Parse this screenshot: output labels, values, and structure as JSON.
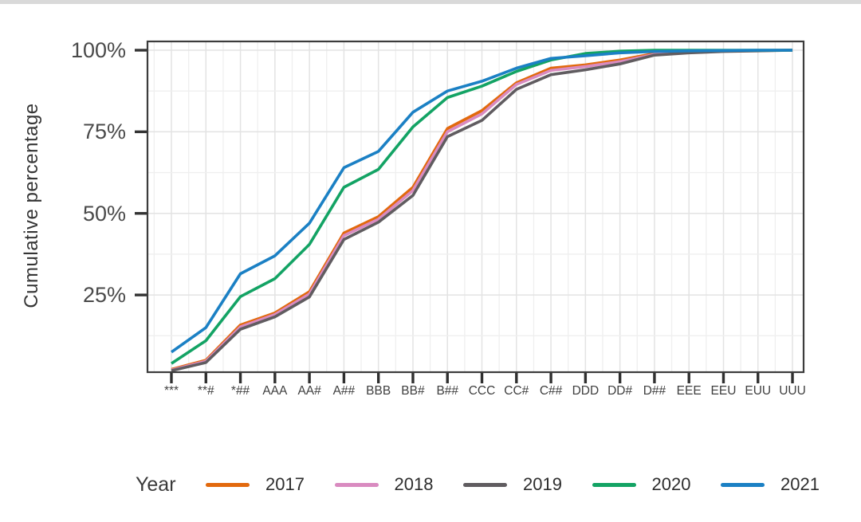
{
  "figure": {
    "y_axis_title": "Cumulative percentage",
    "legend_title": "Year"
  },
  "chart_data": {
    "type": "line",
    "title": "",
    "xlabel": "",
    "ylabel": "Cumulative percentage",
    "ylim": [
      0,
      100
    ],
    "grid": true,
    "legend_position": "bottom",
    "legend_title": "Year",
    "y_ticks": [
      {
        "label": "100%",
        "value": 100
      },
      {
        "label": "75%",
        "value": 75
      },
      {
        "label": "50%",
        "value": 50
      },
      {
        "label": "25%",
        "value": 25
      }
    ],
    "y_minor_gridlines": [
      12.5,
      37.5,
      62.5,
      87.5
    ],
    "categories": [
      "***",
      "**#",
      "*##",
      "AAA",
      "AA#",
      "A##",
      "BBB",
      "BB#",
      "B##",
      "CCC",
      "CC#",
      "C##",
      "DDD",
      "DD#",
      "D##",
      "EEE",
      "EEU",
      "EUU",
      "UUU"
    ],
    "series": [
      {
        "name": "2017",
        "color": "#E2690D",
        "values": [
          2.2,
          5.0,
          15.8,
          19.5,
          26.0,
          44.0,
          49.0,
          58.0,
          76.0,
          81.5,
          90.0,
          94.5,
          95.5,
          97.0,
          99.0,
          99.5,
          99.8,
          99.9,
          100
        ]
      },
      {
        "name": "2018",
        "color": "#D98BC0",
        "values": [
          2.0,
          4.7,
          15.2,
          19.0,
          25.3,
          43.2,
          48.2,
          57.0,
          75.0,
          80.5,
          89.5,
          93.8,
          95.0,
          96.5,
          98.7,
          99.4,
          99.7,
          99.9,
          100
        ]
      },
      {
        "name": "2019",
        "color": "#605C60",
        "values": [
          1.8,
          4.3,
          14.5,
          18.3,
          24.4,
          42.0,
          47.3,
          55.5,
          73.5,
          78.5,
          88.0,
          92.5,
          94.0,
          95.8,
          98.5,
          99.2,
          99.6,
          99.8,
          100
        ]
      },
      {
        "name": "2020",
        "color": "#13A364",
        "values": [
          4.0,
          11.0,
          24.5,
          30.0,
          40.5,
          58.0,
          63.5,
          76.5,
          85.5,
          89.0,
          93.5,
          97.0,
          99.0,
          99.7,
          100,
          100,
          100,
          100,
          100
        ]
      },
      {
        "name": "2021",
        "color": "#1B80C4",
        "values": [
          7.5,
          15.0,
          31.5,
          37.0,
          47.0,
          64.0,
          69.0,
          81.0,
          87.5,
          90.5,
          94.5,
          97.5,
          98.3,
          99.2,
          99.6,
          99.8,
          99.9,
          100,
          100
        ]
      }
    ]
  }
}
